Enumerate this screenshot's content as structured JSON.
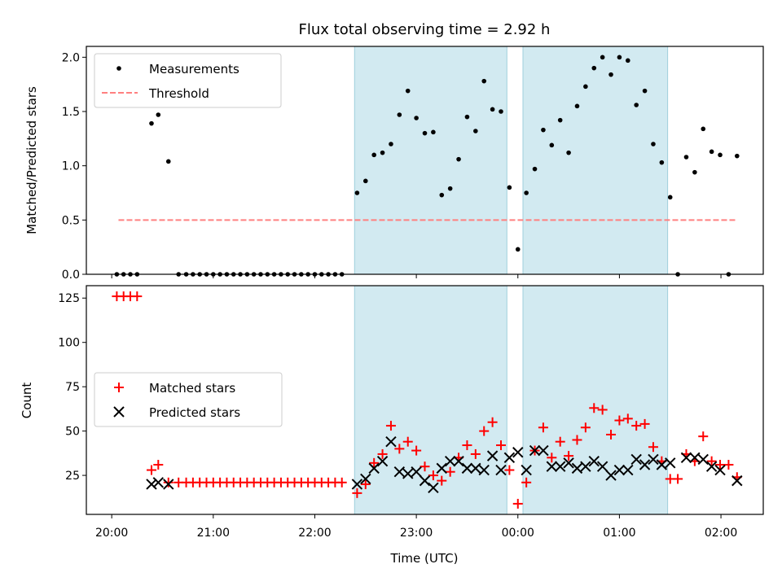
{
  "chart_data": {
    "type": "scatter",
    "title": "Flux total observing time = 2.92 h",
    "xlabel": "Time (UTC)",
    "x_ticks": [
      {
        "t": 0,
        "label": "20:00"
      },
      {
        "t": 60,
        "label": "21:00"
      },
      {
        "t": 120,
        "label": "22:00"
      },
      {
        "t": 180,
        "label": "23:00"
      },
      {
        "t": 240,
        "label": "00:00"
      },
      {
        "t": 300,
        "label": "01:00"
      },
      {
        "t": 360,
        "label": "02:00"
      }
    ],
    "xlim": [
      -15,
      385
    ],
    "highlight_spans": [
      [
        143.5,
        233.5
      ],
      [
        243,
        328.5
      ]
    ],
    "highlight_color": "#add8e6",
    "top": {
      "ylabel": "Matched/Predicted stars",
      "ylim": [
        0,
        2.1
      ],
      "yticks": [
        {
          "v": 0.0,
          "label": "0.0"
        },
        {
          "v": 0.5,
          "label": "0.5"
        },
        {
          "v": 1.0,
          "label": "1.0"
        },
        {
          "v": 1.5,
          "label": "1.5"
        },
        {
          "v": 2.0,
          "label": "2.0"
        }
      ],
      "legend": [
        "Measurements",
        "Threshold"
      ],
      "threshold": {
        "y": 0.5,
        "x_range": [
          4,
          369
        ],
        "color": "#ff8080"
      },
      "measurements": [
        [
          3,
          0
        ],
        [
          7,
          0
        ],
        [
          11,
          0
        ],
        [
          15,
          0
        ],
        [
          23.5,
          1.39
        ],
        [
          27.5,
          1.47
        ],
        [
          33.5,
          1.04
        ],
        [
          39.5,
          0
        ],
        [
          44,
          0
        ],
        [
          48,
          0
        ],
        [
          52,
          0
        ],
        [
          56,
          0
        ],
        [
          60,
          0
        ],
        [
          64,
          0
        ],
        [
          68,
          0
        ],
        [
          72,
          0
        ],
        [
          76,
          0
        ],
        [
          80,
          0
        ],
        [
          84,
          0
        ],
        [
          88,
          0
        ],
        [
          92,
          0
        ],
        [
          96,
          0
        ],
        [
          100,
          0
        ],
        [
          104,
          0
        ],
        [
          108,
          0
        ],
        [
          112,
          0
        ],
        [
          116,
          0
        ],
        [
          120,
          0
        ],
        [
          124,
          0
        ],
        [
          128,
          0
        ],
        [
          132,
          0
        ],
        [
          136,
          0
        ],
        [
          145,
          0.75
        ],
        [
          150,
          0.86
        ],
        [
          155,
          1.1
        ],
        [
          160,
          1.12
        ],
        [
          165,
          1.2
        ],
        [
          170,
          1.47
        ],
        [
          175,
          1.69
        ],
        [
          180,
          1.44
        ],
        [
          185,
          1.3
        ],
        [
          190,
          1.31
        ],
        [
          195,
          0.73
        ],
        [
          200,
          0.79
        ],
        [
          205,
          1.06
        ],
        [
          210,
          1.45
        ],
        [
          215,
          1.32
        ],
        [
          220,
          1.78
        ],
        [
          225,
          1.52
        ],
        [
          230,
          1.5
        ],
        [
          235,
          0.8
        ],
        [
          240,
          0.23
        ],
        [
          245,
          0.75
        ],
        [
          250,
          0.97
        ],
        [
          255,
          1.33
        ],
        [
          260,
          1.19
        ],
        [
          265,
          1.42
        ],
        [
          270,
          1.12
        ],
        [
          275,
          1.55
        ],
        [
          280,
          1.73
        ],
        [
          285,
          1.9
        ],
        [
          290,
          2.0
        ],
        [
          295,
          1.84
        ],
        [
          300,
          2.0
        ],
        [
          305,
          1.97
        ],
        [
          310,
          1.56
        ],
        [
          315,
          1.69
        ],
        [
          320,
          1.2
        ],
        [
          325,
          1.03
        ],
        [
          330,
          0.71
        ],
        [
          334.5,
          0
        ],
        [
          339.5,
          1.08
        ],
        [
          344.5,
          0.94
        ],
        [
          349.5,
          1.34
        ],
        [
          354.5,
          1.13
        ],
        [
          359.5,
          1.1
        ],
        [
          364.5,
          0
        ],
        [
          369.5,
          1.09
        ]
      ]
    },
    "bottom": {
      "ylabel": "Count",
      "ylim": [
        3,
        132
      ],
      "yticks": [
        {
          "v": 25,
          "label": "25"
        },
        {
          "v": 50,
          "label": "50"
        },
        {
          "v": 75,
          "label": "75"
        },
        {
          "v": 100,
          "label": "100"
        },
        {
          "v": 125,
          "label": "125"
        }
      ],
      "legend": [
        "Matched stars",
        "Predicted stars"
      ],
      "series": [
        {
          "name": "Matched stars",
          "marker": "plus",
          "color": "#ff0000",
          "points": [
            [
              3,
              126
            ],
            [
              7,
              126
            ],
            [
              11,
              126
            ],
            [
              15,
              126
            ],
            [
              23.5,
              28
            ],
            [
              27.5,
              31
            ],
            [
              33.5,
              21
            ],
            [
              39.5,
              21
            ],
            [
              44,
              21
            ],
            [
              48,
              21
            ],
            [
              52,
              21
            ],
            [
              56,
              21
            ],
            [
              60,
              21
            ],
            [
              64,
              21
            ],
            [
              68,
              21
            ],
            [
              72,
              21
            ],
            [
              76,
              21
            ],
            [
              80,
              21
            ],
            [
              84,
              21
            ],
            [
              88,
              21
            ],
            [
              92,
              21
            ],
            [
              96,
              21
            ],
            [
              100,
              21
            ],
            [
              104,
              21
            ],
            [
              108,
              21
            ],
            [
              112,
              21
            ],
            [
              116,
              21
            ],
            [
              120,
              21
            ],
            [
              124,
              21
            ],
            [
              128,
              21
            ],
            [
              132,
              21
            ],
            [
              136,
              21
            ],
            [
              145,
              15
            ],
            [
              150,
              20
            ],
            [
              155,
              32
            ],
            [
              160,
              37
            ],
            [
              165,
              53
            ],
            [
              170,
              40
            ],
            [
              175,
              44
            ],
            [
              180,
              39
            ],
            [
              185,
              30
            ],
            [
              190,
              25
            ],
            [
              195,
              22
            ],
            [
              200,
              27
            ],
            [
              205,
              35
            ],
            [
              210,
              42
            ],
            [
              215,
              37
            ],
            [
              220,
              50
            ],
            [
              225,
              55
            ],
            [
              230,
              42
            ],
            [
              235,
              28
            ],
            [
              240,
              9
            ],
            [
              245,
              21
            ],
            [
              250,
              39
            ],
            [
              255,
              52
            ],
            [
              260,
              35
            ],
            [
              265,
              44
            ],
            [
              270,
              36
            ],
            [
              275,
              45
            ],
            [
              280,
              52
            ],
            [
              285,
              63
            ],
            [
              290,
              62
            ],
            [
              295,
              48
            ],
            [
              300,
              56
            ],
            [
              305,
              57
            ],
            [
              310,
              53
            ],
            [
              315,
              54
            ],
            [
              320,
              41
            ],
            [
              325,
              33
            ],
            [
              330,
              23
            ],
            [
              334.5,
              23
            ],
            [
              339.5,
              37
            ],
            [
              344.5,
              33
            ],
            [
              349.5,
              47
            ],
            [
              354.5,
              33
            ],
            [
              359.5,
              31
            ],
            [
              364.5,
              31
            ],
            [
              369.5,
              24
            ]
          ]
        },
        {
          "name": "Predicted stars",
          "marker": "x",
          "color": "#000000",
          "points": [
            [
              23.5,
              20
            ],
            [
              27.5,
              21
            ],
            [
              33.5,
              20
            ],
            [
              145,
              20
            ],
            [
              150,
              23
            ],
            [
              155,
              29
            ],
            [
              160,
              33
            ],
            [
              165,
              44
            ],
            [
              170,
              27
            ],
            [
              175,
              26
            ],
            [
              180,
              27
            ],
            [
              185,
              22
            ],
            [
              190,
              18
            ],
            [
              195,
              29
            ],
            [
              200,
              33
            ],
            [
              205,
              33
            ],
            [
              210,
              29
            ],
            [
              215,
              29
            ],
            [
              220,
              28
            ],
            [
              225,
              36
            ],
            [
              230,
              28
            ],
            [
              235,
              35
            ],
            [
              240,
              38
            ],
            [
              245,
              28
            ],
            [
              250,
              39
            ],
            [
              255,
              39
            ],
            [
              260,
              30
            ],
            [
              265,
              30
            ],
            [
              270,
              32
            ],
            [
              275,
              29
            ],
            [
              280,
              30
            ],
            [
              285,
              33
            ],
            [
              290,
              30
            ],
            [
              295,
              25
            ],
            [
              300,
              28
            ],
            [
              305,
              28
            ],
            [
              310,
              34
            ],
            [
              315,
              31
            ],
            [
              320,
              34
            ],
            [
              325,
              31
            ],
            [
              330,
              32
            ],
            [
              339.5,
              35
            ],
            [
              344.5,
              35
            ],
            [
              349.5,
              34
            ],
            [
              354.5,
              30
            ],
            [
              359.5,
              28
            ],
            [
              369.5,
              22
            ]
          ]
        }
      ]
    }
  }
}
